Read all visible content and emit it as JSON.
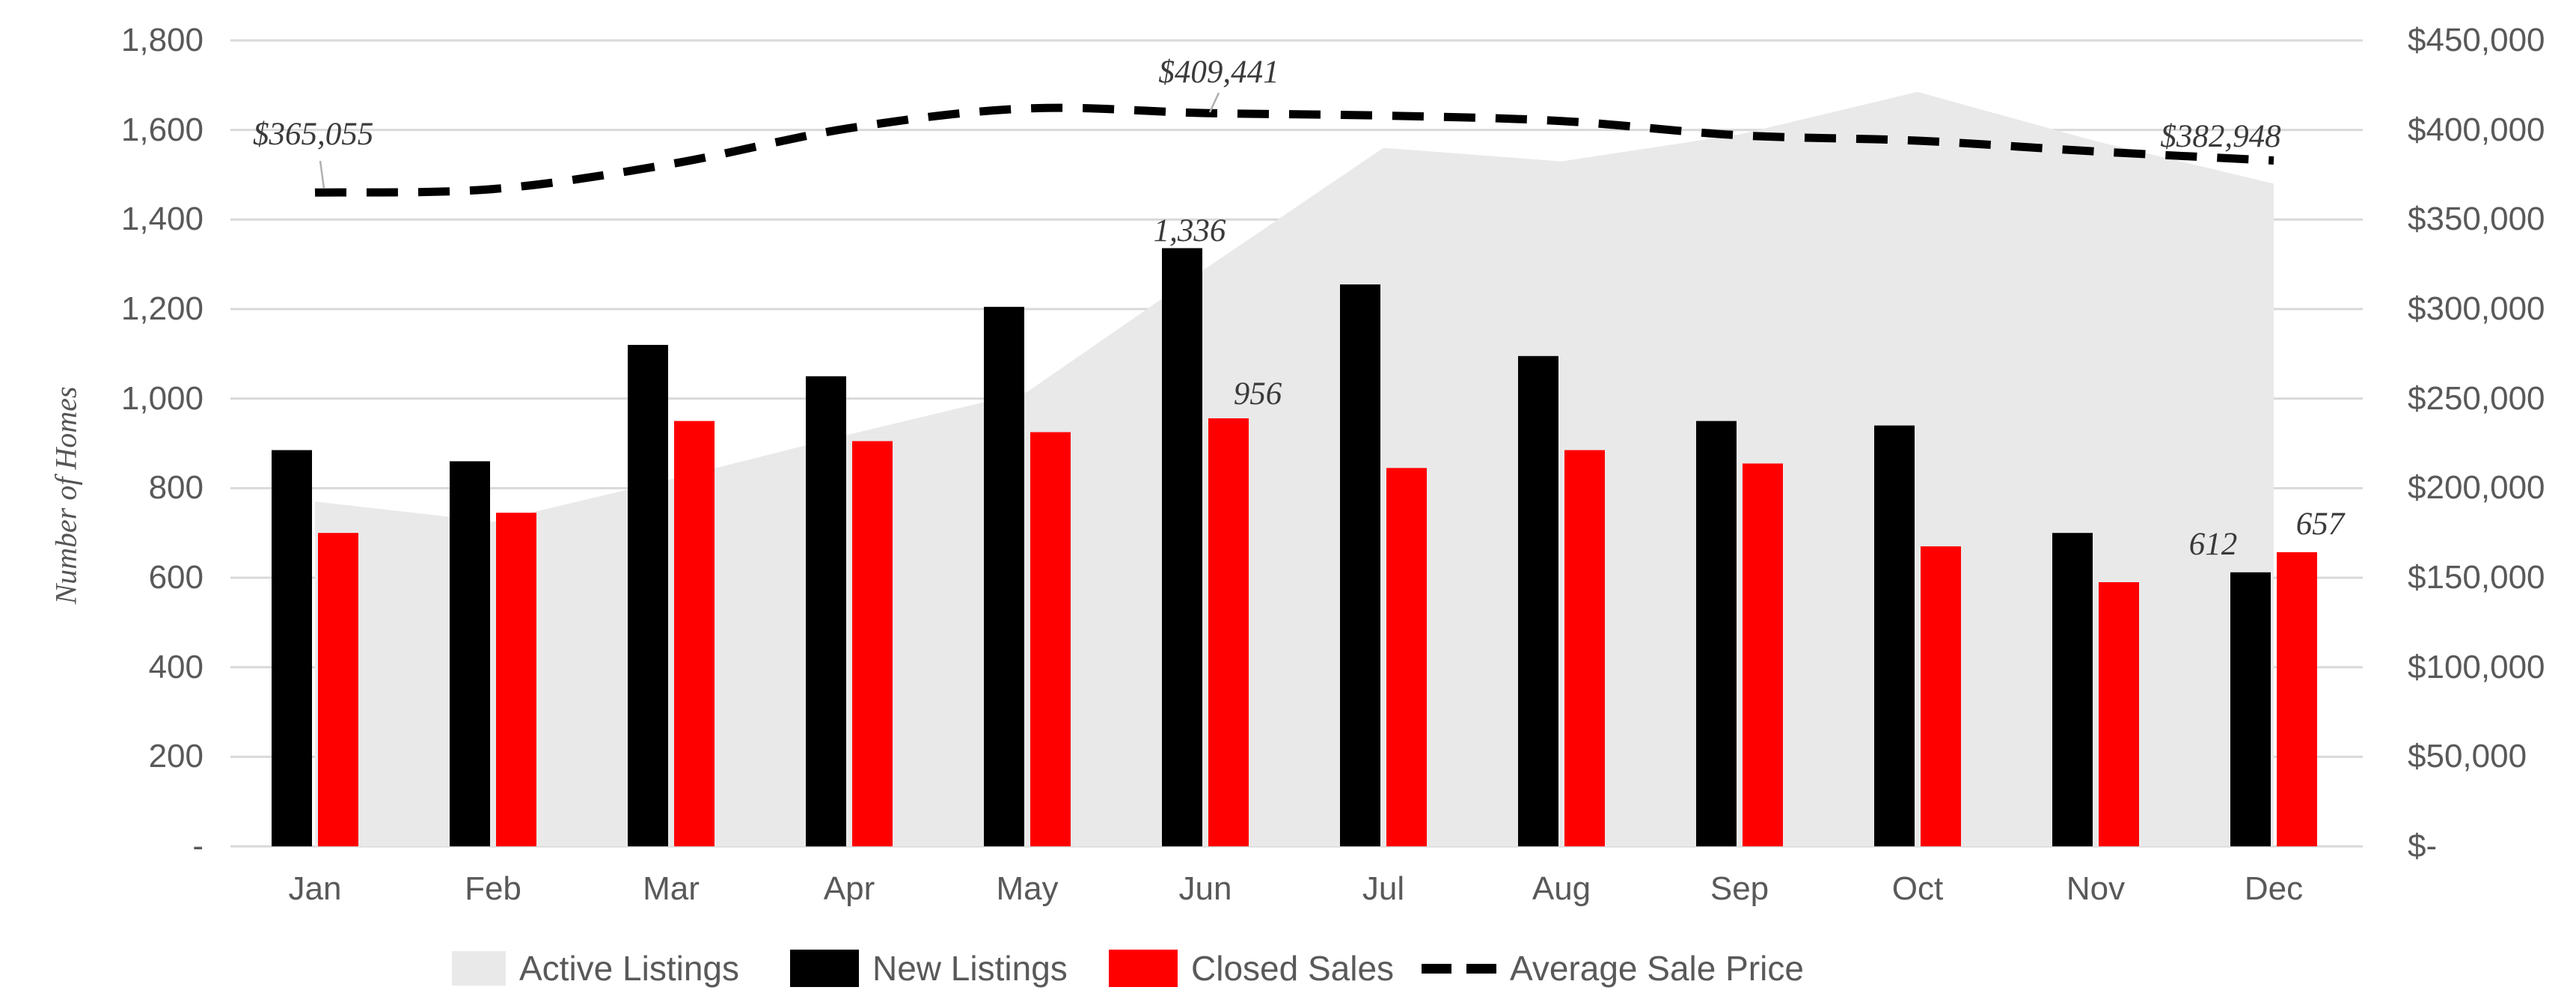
{
  "chart_data": {
    "type": "combo",
    "categories": [
      "Jan",
      "Feb",
      "Mar",
      "Apr",
      "May",
      "Jun",
      "Jul",
      "Aug",
      "Sep",
      "Oct",
      "Nov",
      "Dec"
    ],
    "series": [
      {
        "name": "Active Listings",
        "type": "area",
        "axis": "left",
        "color": "#e9e9e9",
        "values": [
          770,
          725,
          820,
          920,
          1015,
          1290,
          1560,
          1530,
          1590,
          1685,
          1575,
          1480
        ]
      },
      {
        "name": "New Listings",
        "type": "bar",
        "axis": "left",
        "color": "#000000",
        "values": [
          885,
          860,
          1120,
          1050,
          1205,
          1336,
          1255,
          1095,
          950,
          940,
          700,
          612
        ]
      },
      {
        "name": "Closed Sales",
        "type": "bar",
        "axis": "left",
        "color": "#ff0000",
        "values": [
          700,
          745,
          950,
          905,
          925,
          956,
          845,
          885,
          855,
          670,
          590,
          657
        ]
      },
      {
        "name": "Average Sale Price",
        "type": "dashed-line",
        "axis": "right",
        "color": "#000000",
        "smoothed": true,
        "values": [
          365055,
          367000,
          381000,
          401000,
          412000,
          409441,
          408000,
          405000,
          397000,
          394000,
          388000,
          382948
        ]
      }
    ],
    "left_axis": {
      "title": "Number of Homes",
      "min": 0,
      "max": 1800,
      "step": 200,
      "tick_labels": [
        "1,800",
        "1,600",
        "1,400",
        "1,200",
        "1,000",
        "800",
        "600",
        "400",
        "200",
        "-"
      ]
    },
    "right_axis": {
      "title": "",
      "min": 0,
      "max": 450000,
      "step": 50000,
      "tick_labels": [
        "$450,000",
        "$400,000",
        "$350,000",
        "$300,000",
        "$250,000",
        "$200,000",
        "$150,000",
        "$100,000",
        "$50,000",
        "$-"
      ]
    },
    "grid": {
      "horizontal": true,
      "color": "#d9d9d9"
    },
    "annotations": [
      {
        "series": "Average Sale Price",
        "month": "Jan",
        "text": "$365,055"
      },
      {
        "series": "Average Sale Price",
        "month": "Jun",
        "text": "$409,441"
      },
      {
        "series": "Average Sale Price",
        "month": "Dec",
        "text": "$382,948"
      },
      {
        "series": "New Listings",
        "month": "Jun",
        "text": "1,336"
      },
      {
        "series": "Closed Sales",
        "month": "Jun",
        "text": "956"
      },
      {
        "series": "New Listings",
        "month": "Dec",
        "text": "612"
      },
      {
        "series": "Closed Sales",
        "month": "Dec",
        "text": "657"
      }
    ],
    "legend": {
      "position": "bottom",
      "items": [
        {
          "label": "Active Listings",
          "marker": "area-swatch",
          "color": "#e9e9e9"
        },
        {
          "label": "New Listings",
          "marker": "bar-swatch",
          "color": "#000000"
        },
        {
          "label": "Closed Sales",
          "marker": "bar-swatch",
          "color": "#ff0000"
        },
        {
          "label": "Average Sale Price",
          "marker": "dashes",
          "color": "#000000"
        }
      ]
    }
  }
}
